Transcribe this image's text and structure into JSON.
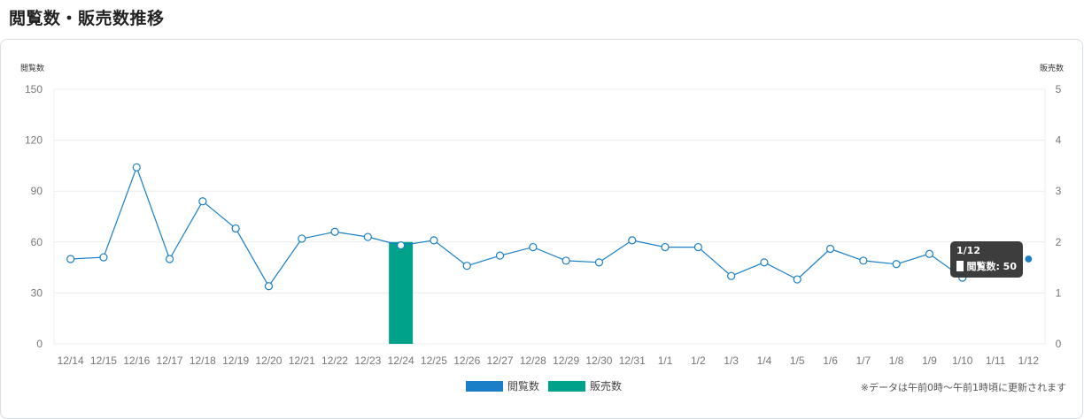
{
  "page": {
    "title": "閲覧数・販売数推移"
  },
  "chart_data": {
    "type": "line",
    "categories": [
      "12/14",
      "12/15",
      "12/16",
      "12/17",
      "12/18",
      "12/19",
      "12/20",
      "12/21",
      "12/22",
      "12/23",
      "12/24",
      "12/25",
      "12/26",
      "12/27",
      "12/28",
      "12/29",
      "12/30",
      "12/31",
      "1/1",
      "1/2",
      "1/3",
      "1/4",
      "1/5",
      "1/6",
      "1/7",
      "1/8",
      "1/9",
      "1/10",
      "1/11",
      "1/12"
    ],
    "series": [
      {
        "name": "閲覧数",
        "axis": "left",
        "type": "line",
        "color": "#1a7fc7",
        "values": [
          50,
          51,
          104,
          50,
          84,
          68,
          34,
          62,
          66,
          63,
          58,
          61,
          46,
          52,
          57,
          49,
          48,
          61,
          57,
          57,
          40,
          48,
          38,
          56,
          49,
          47,
          53,
          39,
          null,
          50
        ]
      },
      {
        "name": "販売数",
        "axis": "right",
        "type": "bar",
        "color": "#00a38a",
        "values": [
          0,
          0,
          0,
          0,
          0,
          0,
          0,
          0,
          0,
          0,
          2,
          0,
          0,
          0,
          0,
          0,
          0,
          0,
          0,
          0,
          0,
          0,
          0,
          0,
          0,
          0,
          0,
          0,
          0,
          0
        ]
      }
    ],
    "ylabel": "閲覧数",
    "y2label": "販売数",
    "ylim": [
      0,
      150
    ],
    "y2lim": [
      0,
      5
    ],
    "yticks": [
      0,
      30,
      60,
      90,
      120,
      150
    ],
    "y2ticks": [
      0,
      1,
      2,
      3,
      4,
      5
    ],
    "grid": true,
    "legend_position": "bottom-center",
    "legend": [
      {
        "label": "閲覧数",
        "color": "#1a7fc7"
      },
      {
        "label": "販売数",
        "color": "#00a38a"
      }
    ]
  },
  "tooltip": {
    "title": "1/12",
    "text": "閲覧数: 50"
  },
  "footnote": "※データは午前0時〜午前1時頃に更新されます"
}
